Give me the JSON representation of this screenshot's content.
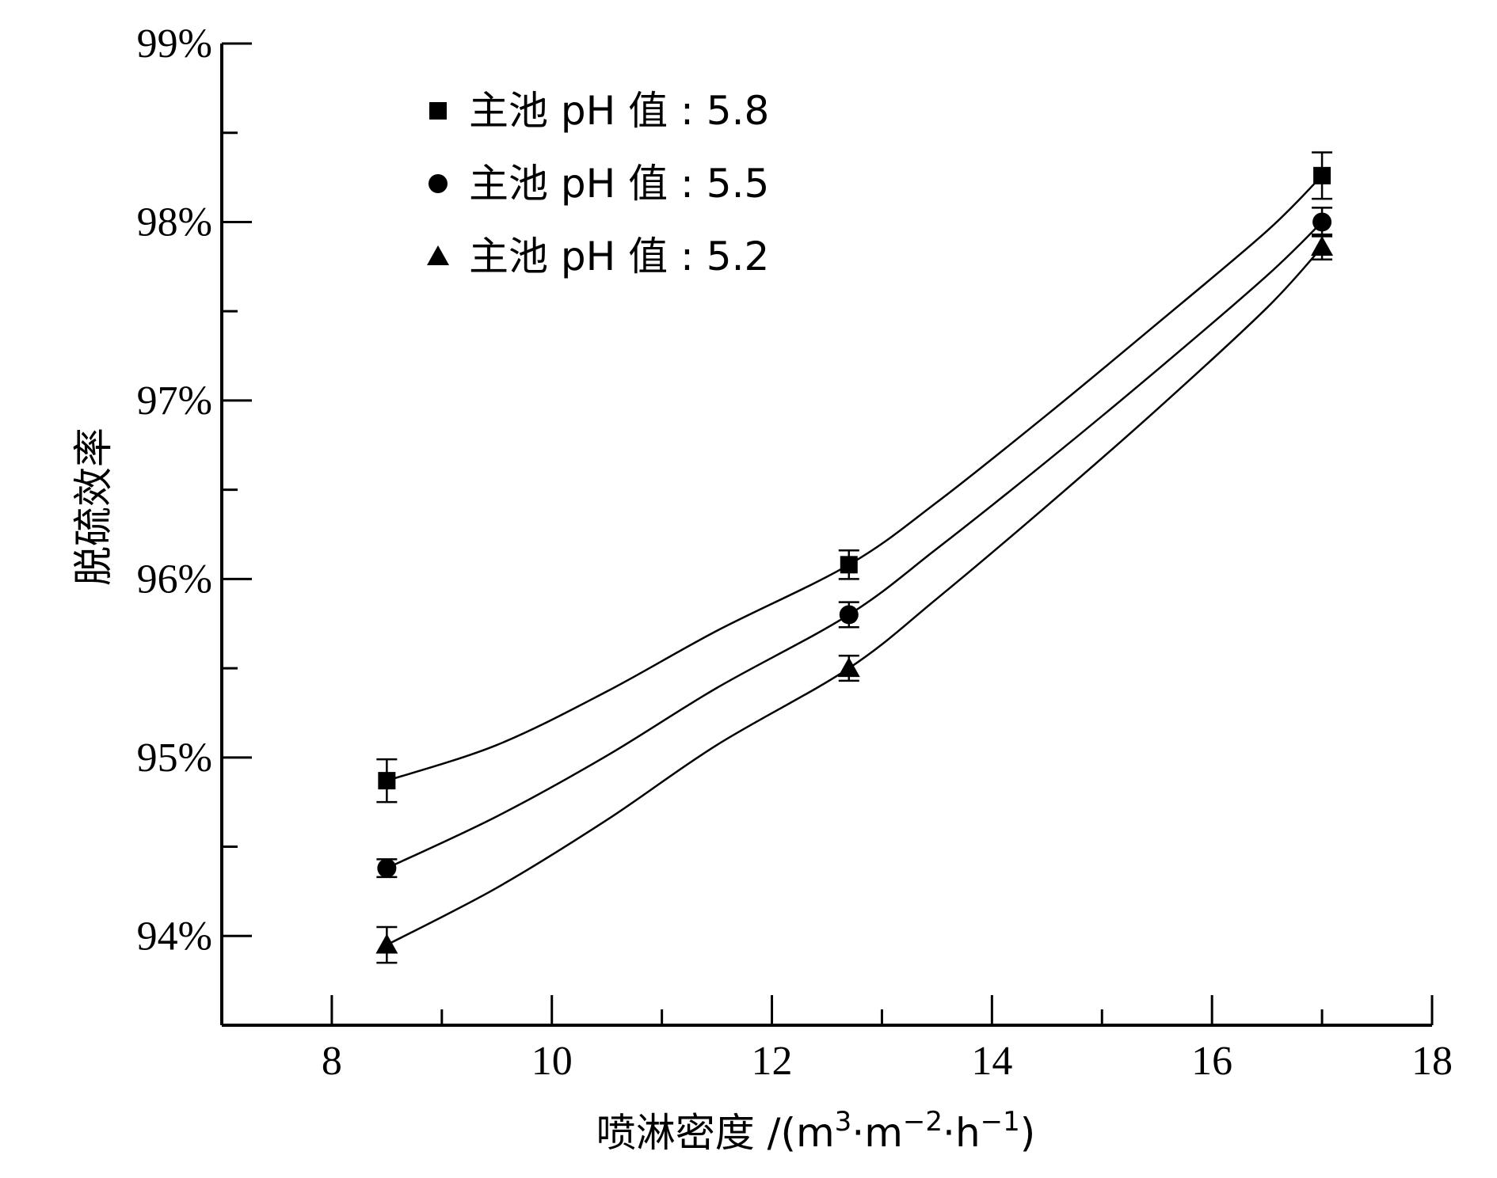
{
  "chart_data": {
    "type": "scatter",
    "xlabel": {
      "main": "喷淋密度 /(m",
      "sup1": "3",
      "mid1": "·m",
      "sup2": "−2",
      "mid2": "·h",
      "sup3": "−1",
      "end": ")"
    },
    "ylabel": "脱硫效率",
    "xlim": [
      7,
      18
    ],
    "ylim": [
      93.5,
      99
    ],
    "x_ticks": [
      {
        "value": 8,
        "label": "8"
      },
      {
        "value": 10,
        "label": "10"
      },
      {
        "value": 12,
        "label": "12"
      },
      {
        "value": 14,
        "label": "14"
      },
      {
        "value": 16,
        "label": "16"
      },
      {
        "value": 18,
        "label": "18"
      }
    ],
    "x_minor_ticks": [
      9,
      11,
      13,
      15,
      17
    ],
    "y_ticks": [
      {
        "value": 94,
        "label": "94%"
      },
      {
        "value": 95,
        "label": "95%"
      },
      {
        "value": 96,
        "label": "96%"
      },
      {
        "value": 97,
        "label": "97%"
      },
      {
        "value": 98,
        "label": "98%"
      },
      {
        "value": 99,
        "label": "99%"
      }
    ],
    "y_minor_ticks": [
      94.5,
      95.5,
      96.5,
      97.5,
      98.5
    ],
    "legend_position": "top-left",
    "series": [
      {
        "name": "主池 pH 值 : 5.8",
        "marker": "square",
        "x": [
          8.5,
          12.7,
          17.0
        ],
        "y": [
          94.87,
          96.08,
          98.26
        ],
        "err": [
          0.12,
          0.08,
          0.13
        ],
        "fit": [
          [
            8.5,
            94.87
          ],
          [
            9.5,
            95.07
          ],
          [
            10.5,
            95.37
          ],
          [
            11.5,
            95.71
          ],
          [
            12.7,
            96.08
          ],
          [
            13.5,
            96.43
          ],
          [
            14.5,
            96.92
          ],
          [
            15.5,
            97.43
          ],
          [
            16.5,
            97.95
          ],
          [
            17.0,
            98.26
          ]
        ]
      },
      {
        "name": "主池 pH 值 : 5.5",
        "marker": "circle",
        "x": [
          8.5,
          12.7,
          17.0
        ],
        "y": [
          94.38,
          95.8,
          98.0
        ],
        "err": [
          0.05,
          0.07,
          0.08
        ],
        "fit": [
          [
            8.5,
            94.38
          ],
          [
            9.5,
            94.67
          ],
          [
            10.5,
            95.01
          ],
          [
            11.5,
            95.39
          ],
          [
            12.7,
            95.8
          ],
          [
            13.5,
            96.17
          ],
          [
            14.5,
            96.66
          ],
          [
            15.5,
            97.17
          ],
          [
            16.5,
            97.7
          ],
          [
            17.0,
            98.0
          ]
        ]
      },
      {
        "name": "主池 pH 值 : 5.2",
        "marker": "triangle",
        "x": [
          8.5,
          12.7,
          17.0
        ],
        "y": [
          93.95,
          95.5,
          97.86
        ],
        "err": [
          0.1,
          0.07,
          0.07
        ],
        "fit": [
          [
            8.5,
            93.95
          ],
          [
            9.5,
            94.27
          ],
          [
            10.5,
            94.65
          ],
          [
            11.5,
            95.07
          ],
          [
            12.7,
            95.5
          ],
          [
            13.5,
            95.89
          ],
          [
            14.5,
            96.41
          ],
          [
            15.5,
            96.95
          ],
          [
            16.5,
            97.52
          ],
          [
            17.0,
            97.86
          ]
        ]
      }
    ]
  }
}
